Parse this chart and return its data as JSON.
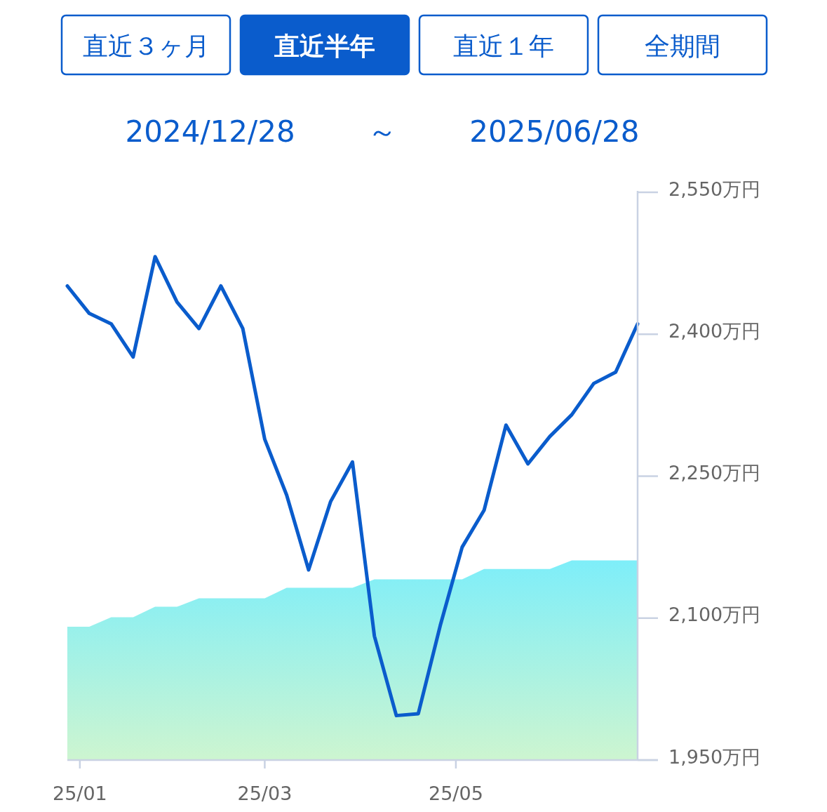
{
  "chart_data": {
    "type": "line",
    "title": "2024/12/28 ～ 2025/06/28",
    "annotations": [
      "直近３ヶ月",
      "直近半年",
      "直近１年",
      "全期間"
    ],
    "x": [
      "2024-12-28",
      "2025-01-04",
      "2025-01-11",
      "2025-01-18",
      "2025-01-25",
      "2025-02-01",
      "2025-02-08",
      "2025-02-15",
      "2025-02-22",
      "2025-03-01",
      "2025-03-08",
      "2025-03-15",
      "2025-03-22",
      "2025-03-29",
      "2025-04-05",
      "2025-04-12",
      "2025-04-19",
      "2025-04-26",
      "2025-05-03",
      "2025-05-10",
      "2025-05-17",
      "2025-05-24",
      "2025-05-31",
      "2025-06-07",
      "2025-06-14",
      "2025-06-21",
      "2025-06-28"
    ],
    "series": [
      {
        "type": "area",
        "color": "#7eeef9",
        "values": [
          2091,
          2091,
          2101,
          2101,
          2112,
          2112,
          2121,
          2121,
          2121,
          2121,
          2132,
          2132,
          2132,
          2132,
          2141,
          2141,
          2141,
          2141,
          2141,
          2152,
          2152,
          2152,
          2152,
          2161,
          2161,
          2161,
          2161
        ]
      },
      {
        "color": "#0a5ccc",
        "values": [
          2451,
          2422,
          2411,
          2376,
          2482,
          2434,
          2406,
          2451,
          2406,
          2289,
          2230,
          2151,
          2223,
          2265,
          2081,
          1997,
          1999,
          2092,
          2175,
          2214,
          2304,
          2263,
          2292,
          2315,
          2348,
          2360,
          2411
        ]
      }
    ],
    "xlim": [
      "2024-12-28",
      "2025-06-28"
    ],
    "xticks": [
      {
        "value": "2025-01-01",
        "label": "25/01"
      },
      {
        "value": "2025-03-01",
        "label": "25/03"
      },
      {
        "value": "2025-05-01",
        "label": "25/05"
      }
    ],
    "ylim": [
      1950,
      2550
    ],
    "yticks": [
      {
        "value": 1950,
        "label": "1,950万円"
      },
      {
        "value": 2100,
        "label": "2,100万円"
      },
      {
        "value": 2250,
        "label": "2,250万円"
      },
      {
        "value": 2400,
        "label": "2,400万円"
      },
      {
        "value": 2550,
        "label": "2,550万円"
      }
    ],
    "grid": false,
    "marker": "none",
    "line_style": "solid"
  }
}
